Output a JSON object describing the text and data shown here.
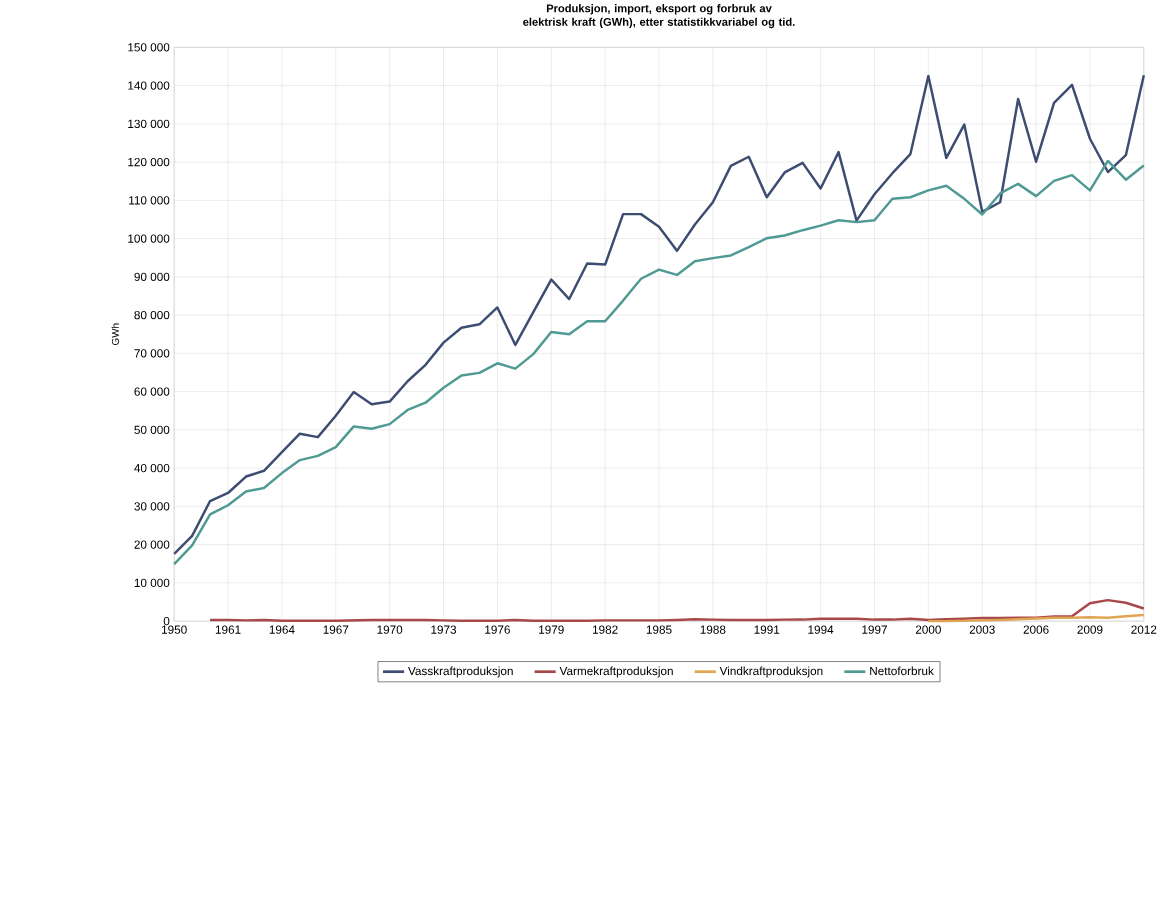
{
  "chart_data": {
    "type": "line",
    "title": "Produksjon, import, eksport og forbruk av elektrisk kraft (GWh), etter statistikkvariabel og tid.",
    "ylabel": "GWh",
    "categories": [
      "1950",
      null,
      null,
      "1961",
      null,
      null,
      "1964",
      null,
      null,
      "1967",
      null,
      null,
      "1970",
      null,
      null,
      "1973",
      null,
      null,
      "1976",
      null,
      null,
      "1979",
      null,
      null,
      "1982",
      null,
      null,
      "1985",
      null,
      null,
      "1988",
      null,
      null,
      "1991",
      null,
      null,
      "1994",
      null,
      null,
      "1997",
      null,
      null,
      "2000",
      null,
      null,
      "2003",
      null,
      null,
      "2006",
      null,
      null,
      "2009",
      null,
      null,
      "2012"
    ],
    "series": [
      {
        "name": "Vasskraftproduksjon",
        "color": "#3d4d72",
        "values": [
          17600,
          22300,
          31400,
          33500,
          37800,
          39300,
          44200,
          49000,
          48100,
          53700,
          59900,
          56700,
          57400,
          62700,
          67000,
          72800,
          76700,
          77600,
          82000,
          72200,
          80800,
          89300,
          84200,
          93500,
          93200,
          106400,
          106400,
          103100,
          96800,
          103700,
          109500,
          119000,
          121400,
          110800,
          117300,
          119800,
          113100,
          122600,
          104700,
          111600,
          117100,
          122100,
          142500,
          121100,
          129800,
          107000,
          109500,
          136500,
          120100,
          135500,
          140200,
          126100,
          117400,
          121800,
          142700
        ]
      },
      {
        "name": "Varmekraftproduksjon",
        "color": "#a8484a",
        "values": [
          null,
          null,
          300,
          300,
          200,
          300,
          100,
          100,
          100,
          100,
          200,
          300,
          300,
          300,
          300,
          200,
          100,
          100,
          100,
          300,
          100,
          100,
          100,
          100,
          200,
          200,
          200,
          200,
          300,
          500,
          400,
          300,
          300,
          300,
          400,
          400,
          600,
          600,
          600,
          400,
          400,
          600,
          300,
          500,
          600,
          800,
          800,
          900,
          900,
          1200,
          1300,
          4700,
          5500,
          4800,
          3300
        ]
      },
      {
        "name": "Vindkraftproduksjon",
        "color": "#e0a552",
        "values": [
          null,
          null,
          null,
          null,
          null,
          null,
          null,
          null,
          null,
          null,
          null,
          null,
          null,
          null,
          null,
          null,
          null,
          null,
          null,
          null,
          null,
          null,
          null,
          null,
          null,
          null,
          null,
          null,
          null,
          null,
          null,
          null,
          null,
          null,
          null,
          null,
          null,
          null,
          null,
          null,
          null,
          null,
          0,
          0,
          100,
          200,
          300,
          500,
          700,
          900,
          900,
          1000,
          900,
          1300,
          1600
        ]
      },
      {
        "name": "Nettoforbruk",
        "color": "#4f9a93",
        "values": [
          14900,
          19800,
          27900,
          30300,
          33900,
          34800,
          38700,
          42100,
          43200,
          45500,
          50900,
          50300,
          51500,
          55200,
          57100,
          61000,
          64200,
          64900,
          67400,
          66000,
          69800,
          75600,
          75000,
          78400,
          78400,
          83800,
          89500,
          91900,
          90500,
          94100,
          94900,
          95600,
          97800,
          100100,
          100800,
          102200,
          103400,
          104800,
          104300,
          104800,
          110400,
          110800,
          112600,
          113800,
          110400,
          106300,
          111800,
          114300,
          111100,
          115100,
          116600,
          112600,
          120300,
          115400,
          119100
        ]
      }
    ],
    "ylim": [
      0,
      150000
    ],
    "yticks": [
      0,
      {
        "value": 10000,
        "label": "10 000"
      },
      {
        "value": 20000,
        "label": "20 000"
      },
      {
        "value": 30000,
        "label": "30 000"
      },
      {
        "value": 40000,
        "label": "40 000"
      },
      {
        "value": 50000,
        "label": "50 000"
      },
      {
        "value": 60000,
        "label": "60 000"
      },
      {
        "value": 70000,
        "label": "70 000"
      },
      {
        "value": 80000,
        "label": "80 000"
      },
      {
        "value": 90000,
        "label": "90 000"
      },
      {
        "value": 100000,
        "label": "100 000"
      },
      {
        "value": 110000,
        "label": "110 000"
      },
      {
        "value": 120000,
        "label": "120 000"
      },
      {
        "value": 130000,
        "label": "130 000"
      },
      {
        "value": 140000,
        "label": "140 000"
      },
      {
        "value": 150000,
        "label": "150 000"
      }
    ],
    "grid": true,
    "legend": "bottom"
  }
}
